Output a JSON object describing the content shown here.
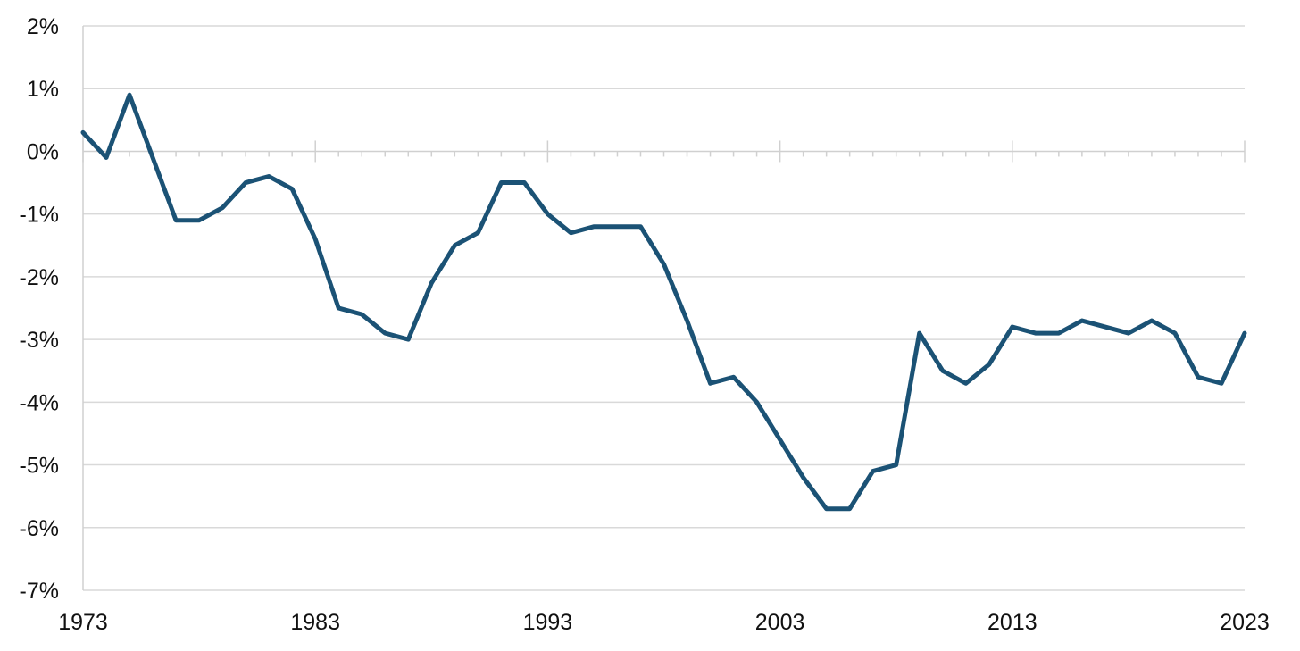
{
  "chart_data": {
    "type": "line",
    "title": "",
    "xlabel": "",
    "ylabel": "",
    "xlim": [
      1973,
      2023
    ],
    "ylim": [
      -7,
      2
    ],
    "grid": true,
    "x_tick_labels": [
      "1973",
      "1983",
      "1993",
      "2003",
      "2013",
      "2023"
    ],
    "x_tick_values": [
      1973,
      1983,
      1993,
      2003,
      2013,
      2023
    ],
    "y_tick_labels": [
      "2%",
      "1%",
      "0%",
      "-1%",
      "-2%",
      "-3%",
      "-4%",
      "-5%",
      "-6%",
      "-7%"
    ],
    "y_tick_values": [
      2,
      1,
      0,
      -1,
      -2,
      -3,
      -4,
      -5,
      -6,
      -7
    ],
    "series": [
      {
        "color": "#1b5275",
        "x": [
          1973,
          1974,
          1975,
          1976,
          1977,
          1978,
          1979,
          1980,
          1981,
          1982,
          1983,
          1984,
          1985,
          1986,
          1987,
          1988,
          1989,
          1990,
          1991,
          1992,
          1993,
          1994,
          1995,
          1996,
          1997,
          1998,
          1999,
          2000,
          2001,
          2002,
          2003,
          2004,
          2005,
          2006,
          2007,
          2008,
          2009,
          2010,
          2011,
          2012,
          2013,
          2014,
          2015,
          2016,
          2017,
          2018,
          2019,
          2020,
          2021,
          2022,
          2023
        ],
        "values": [
          0.3,
          -0.1,
          0.9,
          -0.1,
          -1.1,
          -1.1,
          -0.9,
          -0.5,
          -0.4,
          -0.6,
          -1.4,
          -2.5,
          -2.6,
          -2.9,
          -3.0,
          -2.1,
          -1.5,
          -1.3,
          -0.5,
          -0.5,
          -1.0,
          -1.3,
          -1.2,
          -1.2,
          -1.2,
          -1.8,
          -2.7,
          -3.7,
          -3.6,
          -4.0,
          -4.6,
          -5.2,
          -5.7,
          -5.7,
          -5.1,
          -5.0,
          -2.9,
          -3.5,
          -3.7,
          -3.4,
          -2.8,
          -2.9,
          -2.9,
          -2.7,
          -2.8,
          -2.9,
          -2.7,
          -2.9,
          -3.6,
          -3.7,
          -2.9
        ]
      }
    ]
  }
}
